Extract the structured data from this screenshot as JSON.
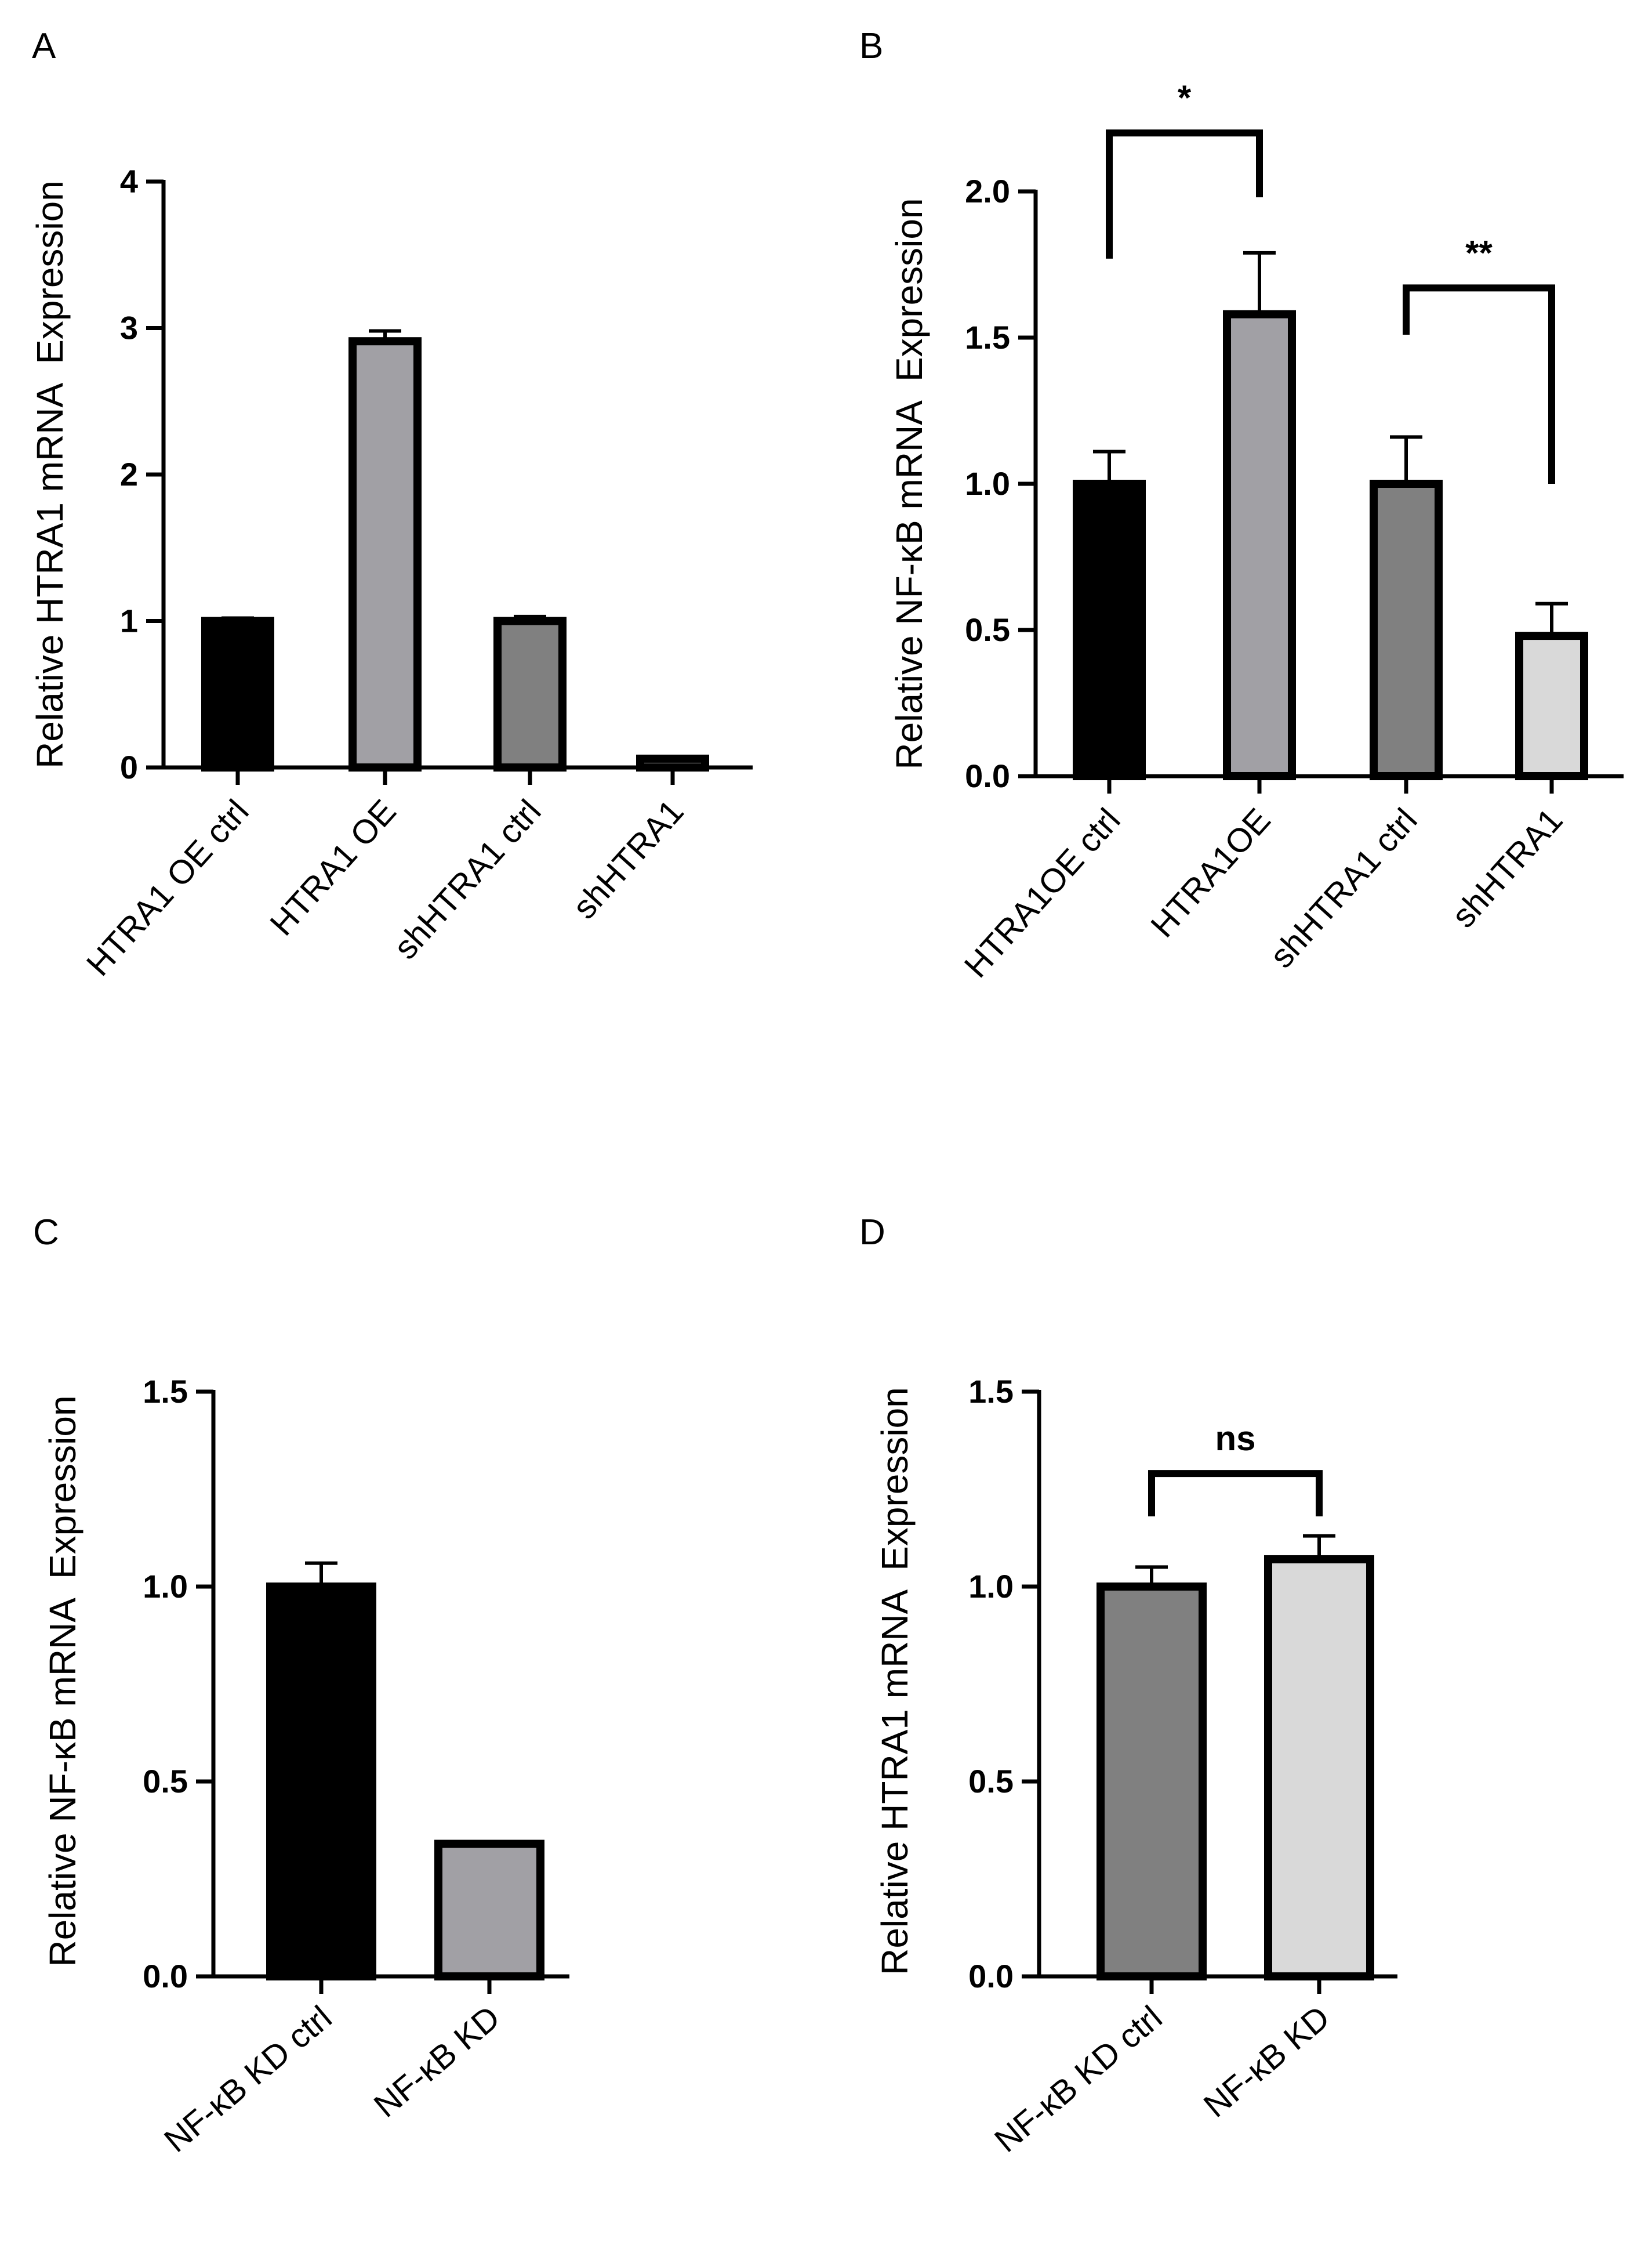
{
  "figure": {
    "colors": {
      "axis": "#000000",
      "black": "#000000",
      "gray_light": "#a1a0a5",
      "gray_dark": "#808080",
      "gray_pale": "#d9d9d9"
    }
  },
  "chart_data": [
    {
      "panel": "A",
      "type": "bar",
      "title": "",
      "xlabel": "",
      "ylabel": "Relative HTRA1 mRNA  Expression",
      "ylim": [
        0,
        4
      ],
      "yticks": [
        "0",
        "1",
        "2",
        "3",
        "4"
      ],
      "ytick_values": [
        0,
        1,
        2,
        3,
        4
      ],
      "categories": [
        "HTRA1 OE ctrl",
        "HTRA1 OE",
        "shHTRA1 ctrl",
        "shHTRA1"
      ],
      "values": [
        1.0,
        2.91,
        1.0,
        0.06
      ],
      "errors": [
        0.02,
        0.07,
        0.03,
        0.01
      ],
      "bar_colors": [
        "#000000",
        "#a1a0a5",
        "#808080",
        "#808080"
      ],
      "annotations": []
    },
    {
      "panel": "B",
      "type": "bar",
      "title": "",
      "xlabel": "",
      "ylabel": "Relative NF-κB mRNA  Expression",
      "ylim": [
        0,
        2
      ],
      "yticks": [
        "0.0",
        "0.5",
        "1.0",
        "1.5",
        "2.0"
      ],
      "ytick_values": [
        0,
        0.5,
        1.0,
        1.5,
        2.0
      ],
      "categories": [
        "HTRA1OE ctrl",
        "HTRA1OE",
        "shHTRA1 ctrl",
        "shHTRA1"
      ],
      "values": [
        1.0,
        1.58,
        1.0,
        0.48
      ],
      "errors": [
        0.11,
        0.21,
        0.16,
        0.11
      ],
      "bar_colors": [
        "#000000",
        "#a1a0a5",
        "#808080",
        "#d9d9d9"
      ],
      "annotations": [
        {
          "label": "*",
          "from": 0,
          "to": 1,
          "level": 2.2,
          "left_end": 1.77,
          "right_end": 1.98
        },
        {
          "label": "**",
          "from": 2,
          "to": 3,
          "level": 1.67,
          "left_end": 1.51,
          "right_end": 1.0
        }
      ]
    },
    {
      "panel": "C",
      "type": "bar",
      "title": "",
      "xlabel": "",
      "ylabel": "Relative NF-κB mRNA  Expression",
      "ylim": [
        0,
        1.5
      ],
      "yticks": [
        "0.0",
        "0.5",
        "1.0",
        "1.5"
      ],
      "ytick_values": [
        0,
        0.5,
        1.0,
        1.5
      ],
      "categories": [
        "NF-κB KD ctrl",
        "NF-κB KD"
      ],
      "values": [
        1.0,
        0.34
      ],
      "errors": [
        0.06,
        0.005
      ],
      "bar_colors": [
        "#000000",
        "#a1a0a5"
      ],
      "annotations": []
    },
    {
      "panel": "D",
      "type": "bar",
      "title": "",
      "xlabel": "",
      "ylabel": "Relative HTRA1 mRNA  Expression",
      "ylim": [
        0,
        1.5
      ],
      "yticks": [
        "0.0",
        "0.5",
        "1.0",
        "1.5"
      ],
      "ytick_values": [
        0,
        0.5,
        1.0,
        1.5
      ],
      "categories": [
        "NF-κB KD ctrl",
        "NF-κB KD"
      ],
      "values": [
        1.0,
        1.07
      ],
      "errors": [
        0.05,
        0.06
      ],
      "bar_colors": [
        "#808080",
        "#d9d9d9"
      ],
      "annotations": [
        {
          "label": "ns",
          "from": 0,
          "to": 1,
          "level": 1.29,
          "left_end": 1.18,
          "right_end": 1.18
        }
      ]
    }
  ]
}
